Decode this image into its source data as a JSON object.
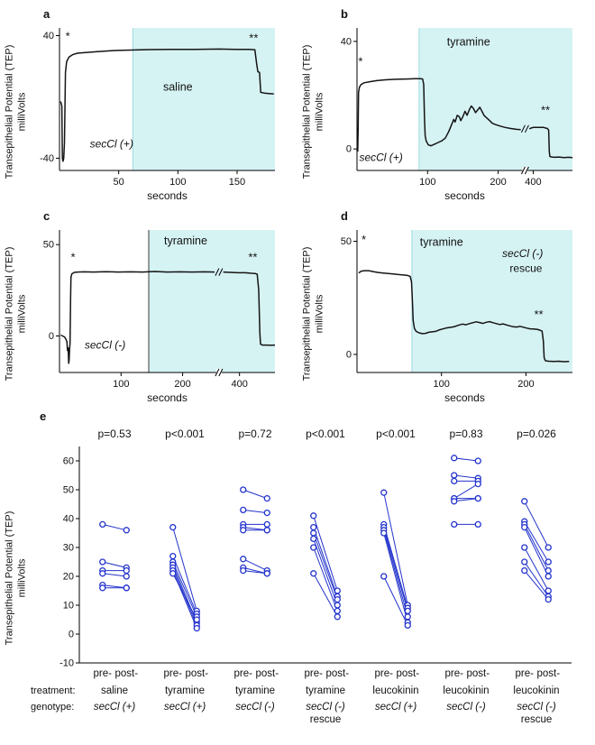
{
  "axis_labels": {
    "y_line1": "Transepithelial Potential (TEP)",
    "y_line2": "milliVolts",
    "x_label": "seconds"
  },
  "panels": {
    "a": {
      "letter": "a"
    },
    "b": {
      "letter": "b"
    },
    "c": {
      "letter": "c"
    },
    "d": {
      "letter": "d"
    },
    "e": {
      "letter": "e"
    }
  },
  "colors": {
    "trace": "#141414",
    "shade": "#d6f3f4",
    "shade_edge": "#9adbe0",
    "shade_edge_dark": "#3a3a3a",
    "blue": "#2333cc",
    "pvalue_gray": "#949494"
  },
  "chart_data": [
    {
      "panel": "a",
      "type": "line",
      "title": "",
      "ylabel": "Transepithelial Potential (TEP) milliVolts",
      "xlabel": "seconds",
      "ylim": [
        -48,
        45
      ],
      "yticks": [
        -40,
        40
      ],
      "xticks": [
        50,
        100,
        150
      ],
      "xsegments": [
        {
          "from": 0,
          "to": 182,
          "f0": 0,
          "f1": 1
        }
      ],
      "shade": {
        "from": 62,
        "to": 182,
        "label": "saline",
        "label_x": 100,
        "label_y": 4,
        "edge_dark": false
      },
      "annotations": [
        {
          "text": "*",
          "x": 7,
          "y": 37,
          "size": 13
        },
        {
          "text": "**",
          "x": 164,
          "y": 36,
          "size": 13
        },
        {
          "text": "secCl (+)",
          "x": 44,
          "y": -33,
          "italic": true
        }
      ],
      "trace": [
        [
          1,
          -3
        ],
        [
          2,
          -6
        ],
        [
          2.4,
          -40
        ],
        [
          3,
          -42
        ],
        [
          3.6,
          -40
        ],
        [
          4.2,
          -30
        ],
        [
          5,
          16
        ],
        [
          6,
          23
        ],
        [
          8,
          26
        ],
        [
          11,
          27.5
        ],
        [
          15,
          28.5
        ],
        [
          22,
          29
        ],
        [
          32,
          29.6
        ],
        [
          45,
          30.2
        ],
        [
          60,
          30.6
        ],
        [
          75,
          30.9
        ],
        [
          95,
          31
        ],
        [
          115,
          31
        ],
        [
          135,
          31.2
        ],
        [
          150,
          31
        ],
        [
          160,
          31
        ],
        [
          165,
          30.8
        ],
        [
          166.5,
          22
        ],
        [
          167.5,
          16.5
        ],
        [
          169,
          16
        ],
        [
          170,
          3
        ],
        [
          173,
          2.5
        ],
        [
          177,
          2.2
        ],
        [
          181,
          2
        ]
      ]
    },
    {
      "panel": "b",
      "type": "line",
      "title": "",
      "ylabel": "Transepithelial Potential (TEP) milliVolts",
      "xlabel": "seconds",
      "ylim": [
        -8,
        45
      ],
      "yticks": [
        0,
        40
      ],
      "xticks": [
        100,
        200,
        400
      ],
      "xsegments": [
        {
          "from": 0,
          "to": 232,
          "f0": 0,
          "f1": 0.76
        },
        {
          "from": 388,
          "to": 522,
          "f0": 0.8,
          "f1": 1
        }
      ],
      "trace_break_y": 7.5,
      "shade": {
        "from": 88,
        "to": 522,
        "label": "tyramine",
        "label_x": 158,
        "label_y": 38.5,
        "edge_dark": false
      },
      "annotations": [
        {
          "text": "*",
          "x": 5,
          "y": 31,
          "size": 13
        },
        {
          "text": "**",
          "x": 438,
          "y": 13,
          "size": 13
        },
        {
          "text": "secCl (+)",
          "x": 34,
          "y": -4.5,
          "italic": true
        }
      ],
      "trace": [
        [
          1,
          -1
        ],
        [
          1.6,
          8
        ],
        [
          2.2,
          21
        ],
        [
          3.5,
          23
        ],
        [
          6,
          24
        ],
        [
          10,
          24.6
        ],
        [
          18,
          25
        ],
        [
          28,
          25.4
        ],
        [
          40,
          25.7
        ],
        [
          55,
          25.9
        ],
        [
          70,
          26
        ],
        [
          82,
          26.1
        ],
        [
          90,
          26.1
        ],
        [
          93,
          26
        ],
        [
          94.5,
          24
        ],
        [
          95.5,
          12
        ],
        [
          96.5,
          5
        ],
        [
          98,
          3
        ],
        [
          101,
          1.5
        ],
        [
          105,
          1.2
        ],
        [
          110,
          1.8
        ],
        [
          115,
          2.4
        ],
        [
          120,
          3
        ],
        [
          125,
          4
        ],
        [
          130,
          6.5
        ],
        [
          134,
          9
        ],
        [
          137,
          11
        ],
        [
          139,
          10
        ],
        [
          142,
          12.5
        ],
        [
          145,
          12
        ],
        [
          147,
          10.5
        ],
        [
          150,
          12
        ],
        [
          153,
          14
        ],
        [
          156,
          12.5
        ],
        [
          159,
          14.5
        ],
        [
          162,
          16
        ],
        [
          165,
          15
        ],
        [
          168,
          13.5
        ],
        [
          171,
          14.5
        ],
        [
          174,
          15.5
        ],
        [
          177,
          14
        ],
        [
          180,
          12.5
        ],
        [
          184,
          11.5
        ],
        [
          188,
          10.5
        ],
        [
          192,
          9.5
        ],
        [
          197,
          9
        ],
        [
          203,
          8.5
        ],
        [
          210,
          8
        ],
        [
          218,
          7.6
        ],
        [
          226,
          7.3
        ],
        [
          232,
          7.2
        ],
        [
          388,
          7.5
        ],
        [
          394,
          7.8
        ],
        [
          400,
          8
        ],
        [
          408,
          8
        ],
        [
          416,
          8
        ],
        [
          424,
          8
        ],
        [
          432,
          8
        ],
        [
          438,
          7.8
        ],
        [
          444,
          7.6
        ],
        [
          448,
          7
        ],
        [
          450,
          -1
        ],
        [
          452,
          -2.8
        ],
        [
          458,
          -3
        ],
        [
          468,
          -3.1
        ],
        [
          480,
          -3
        ],
        [
          495,
          -3.2
        ],
        [
          510,
          -3.1
        ],
        [
          522,
          -3.2
        ]
      ]
    },
    {
      "panel": "c",
      "type": "line",
      "title": "",
      "ylabel": "Transepithelial Potential (TEP) milliVolts",
      "xlabel": "seconds",
      "ylim": [
        -20,
        58
      ],
      "yticks": [
        0,
        50
      ],
      "xticks": [
        100,
        200,
        400
      ],
      "xsegments": [
        {
          "from": 0,
          "to": 252,
          "f0": 0,
          "f1": 0.72
        },
        {
          "from": 378,
          "to": 448,
          "f0": 0.76,
          "f1": 1
        }
      ],
      "trace_break_y": 35,
      "shade": {
        "from": 145,
        "to": 448,
        "label": "tyramine",
        "label_x": 205,
        "label_y": 50,
        "edge_dark": true
      },
      "annotations": [
        {
          "text": "*",
          "x": 22,
          "y": 41,
          "size": 13
        },
        {
          "text": "**",
          "x": 418,
          "y": 41,
          "size": 13
        },
        {
          "text": "secCl (-)",
          "x": 74,
          "y": -7,
          "italic": true
        }
      ],
      "trace": [
        [
          2,
          0.5
        ],
        [
          5,
          0
        ],
        [
          8,
          -0.5
        ],
        [
          10,
          -1.5
        ],
        [
          12,
          -3
        ],
        [
          13,
          -8
        ],
        [
          14,
          -6.5
        ],
        [
          15,
          -15
        ],
        [
          15.6,
          -13
        ],
        [
          16.4,
          -7
        ],
        [
          17.2,
          -4
        ],
        [
          18,
          20
        ],
        [
          18.6,
          32
        ],
        [
          20,
          34
        ],
        [
          24,
          34.8
        ],
        [
          30,
          35
        ],
        [
          40,
          35.1
        ],
        [
          55,
          35
        ],
        [
          75,
          35.2
        ],
        [
          95,
          35
        ],
        [
          115,
          35.1
        ],
        [
          135,
          35
        ],
        [
          155,
          35.3
        ],
        [
          175,
          35
        ],
        [
          195,
          35.1
        ],
        [
          215,
          35
        ],
        [
          235,
          35.1
        ],
        [
          252,
          35
        ],
        [
          378,
          35
        ],
        [
          388,
          34.8
        ],
        [
          398,
          34.6
        ],
        [
          408,
          34.6
        ],
        [
          416,
          34.3
        ],
        [
          421,
          34.2
        ],
        [
          424,
          33.8
        ],
        [
          426,
          25
        ],
        [
          427.5,
          2
        ],
        [
          428.5,
          -4.5
        ],
        [
          431,
          -5
        ],
        [
          436,
          -5
        ],
        [
          442,
          -5.1
        ],
        [
          448,
          -5
        ]
      ]
    },
    {
      "panel": "d",
      "type": "line",
      "title": "",
      "ylabel": "Transepithelial Potential (TEP) milliVolts",
      "xlabel": "seconds",
      "ylim": [
        -8,
        55
      ],
      "yticks": [
        0,
        50
      ],
      "xticks": [
        100,
        200
      ],
      "xsegments": [
        {
          "from": 0,
          "to": 255,
          "f0": 0,
          "f1": 1
        }
      ],
      "shade": {
        "from": 65,
        "to": 255,
        "label": "tyramine",
        "label_x": 100,
        "label_y": 48,
        "edge_dark": false
      },
      "annotations": [
        {
          "text": "*",
          "x": 8,
          "y": 49,
          "size": 13
        },
        {
          "text": "**",
          "x": 215,
          "y": 16,
          "size": 13
        },
        {
          "text": "secCl (-)",
          "x": 196,
          "y": 43,
          "italic": true
        },
        {
          "text": "rescue",
          "x": 200,
          "y": 36.5
        }
      ],
      "trace": [
        [
          2,
          36
        ],
        [
          5,
          36.8
        ],
        [
          9,
          37
        ],
        [
          14,
          37
        ],
        [
          19,
          36.6
        ],
        [
          25,
          36.2
        ],
        [
          31,
          36
        ],
        [
          37,
          35.8
        ],
        [
          43,
          35.6
        ],
        [
          49,
          35.3
        ],
        [
          55,
          35.1
        ],
        [
          60,
          34.9
        ],
        [
          63,
          34.5
        ],
        [
          64.5,
          32
        ],
        [
          65.5,
          24
        ],
        [
          66.5,
          15
        ],
        [
          68,
          11.5
        ],
        [
          70,
          10.2
        ],
        [
          73,
          9.6
        ],
        [
          77,
          9.2
        ],
        [
          81,
          9.3
        ],
        [
          85,
          9.8
        ],
        [
          89,
          10
        ],
        [
          93,
          10.2
        ],
        [
          97,
          10.8
        ],
        [
          101,
          11.2
        ],
        [
          105,
          11.6
        ],
        [
          109,
          11.9
        ],
        [
          113,
          12.1
        ],
        [
          117,
          12.5
        ],
        [
          121,
          13
        ],
        [
          125,
          13.4
        ],
        [
          129,
          13.1
        ],
        [
          133,
          13.6
        ],
        [
          137,
          14
        ],
        [
          141,
          14.4
        ],
        [
          145,
          14.1
        ],
        [
          149,
          13.7
        ],
        [
          153,
          14.2
        ],
        [
          157,
          14.5
        ],
        [
          161,
          14
        ],
        [
          165,
          13.6
        ],
        [
          169,
          13.2
        ],
        [
          173,
          13.5
        ],
        [
          177,
          13
        ],
        [
          181,
          12.6
        ],
        [
          185,
          12.2
        ],
        [
          189,
          12.1
        ],
        [
          193,
          12.4
        ],
        [
          197,
          12
        ],
        [
          201,
          11.6
        ],
        [
          205,
          11.3
        ],
        [
          209,
          11.2
        ],
        [
          213,
          11.1
        ],
        [
          216,
          10.8
        ],
        [
          219,
          10.3
        ],
        [
          220.5,
          6
        ],
        [
          221.5,
          -1.5
        ],
        [
          223,
          -2.8
        ],
        [
          227,
          -3
        ],
        [
          233,
          -3.1
        ],
        [
          239,
          -3
        ],
        [
          245,
          -3.2
        ],
        [
          251,
          -3.1
        ]
      ]
    },
    {
      "panel": "e",
      "type": "scatter",
      "subtype": "paired-dot",
      "title": "",
      "ylabel": "Transepithelial Potential (TEP) milliVolts",
      "ylim": [
        -10,
        65
      ],
      "yticks": [
        -10,
        0,
        10,
        20,
        30,
        40,
        50,
        60
      ],
      "pre_label": "pre-",
      "post_label": "post-",
      "row_labels": {
        "treatment": "treatment:",
        "genotype": "genotype:"
      },
      "groups": [
        {
          "p": "p=0.53",
          "sig": false,
          "treatment": "saline",
          "genotype": "secCl (+)",
          "pairs": [
            [
              38,
              36
            ],
            [
              25,
              23
            ],
            [
              22,
              22
            ],
            [
              21,
              20
            ],
            [
              17,
              16
            ],
            [
              16,
              16
            ]
          ]
        },
        {
          "p": "p<0.001",
          "sig": true,
          "treatment": "tyramine",
          "genotype": "secCl (+)",
          "pairs": [
            [
              37,
              8
            ],
            [
              27,
              7
            ],
            [
              25,
              6
            ],
            [
              24,
              4
            ],
            [
              23,
              3
            ],
            [
              22,
              2
            ],
            [
              21,
              5
            ]
          ]
        },
        {
          "p": "p=0.72",
          "sig": false,
          "treatment": "tyramine",
          "genotype": "secCl (-)",
          "pairs": [
            [
              50,
              47
            ],
            [
              43,
              42
            ],
            [
              38,
              38
            ],
            [
              37,
              36
            ],
            [
              36,
              36
            ],
            [
              26,
              22
            ],
            [
              23,
              21
            ],
            [
              22,
              21
            ]
          ]
        },
        {
          "p": "p<0.001",
          "sig": true,
          "treatment": "tyramine",
          "genotype": "secCl (-)",
          "genotype2": "rescue",
          "pairs": [
            [
              41,
              15
            ],
            [
              37,
              13
            ],
            [
              35,
              12
            ],
            [
              33,
              10
            ],
            [
              30,
              8
            ],
            [
              21,
              6
            ]
          ]
        },
        {
          "p": "p<0.001",
          "sig": true,
          "treatment": "leucokinin",
          "genotype": "secCl (+)",
          "pairs": [
            [
              49,
              10
            ],
            [
              38,
              9
            ],
            [
              37,
              8
            ],
            [
              36,
              6
            ],
            [
              35,
              4
            ],
            [
              20,
              3
            ]
          ]
        },
        {
          "p": "p=0.83",
          "sig": false,
          "treatment": "leucokinin",
          "genotype": "secCl (-)",
          "pairs": [
            [
              61,
              60
            ],
            [
              55,
              54
            ],
            [
              53,
              53
            ],
            [
              47,
              52
            ],
            [
              47,
              47
            ],
            [
              46,
              47
            ],
            [
              38,
              38
            ]
          ]
        },
        {
          "p": "p=0.026",
          "sig": true,
          "treatment": "leucokinin",
          "genotype": "secCl (-)",
          "genotype2": "rescue",
          "pairs": [
            [
              46,
              30
            ],
            [
              39,
              25
            ],
            [
              38,
              22
            ],
            [
              37,
              20
            ],
            [
              30,
              15
            ],
            [
              25,
              13
            ],
            [
              22,
              12
            ]
          ]
        }
      ]
    }
  ]
}
